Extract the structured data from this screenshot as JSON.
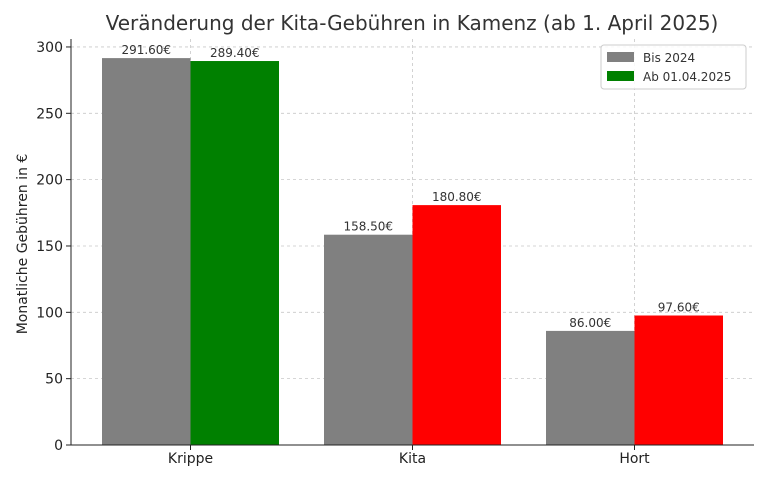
{
  "chart_data": {
    "type": "bar",
    "title": "Veränderung der Kita-Gebühren in Kamenz (ab 1. April 2025)",
    "xlabel": "",
    "ylabel": "Monatliche Gebühren in €",
    "categories": [
      "Krippe",
      "Kita",
      "Hort"
    ],
    "series": [
      {
        "name": "Bis 2024",
        "values": [
          291.6,
          158.5,
          86.0
        ],
        "labels": [
          "291.60€",
          "158.50€",
          "86.00€"
        ],
        "colors": [
          "#808080",
          "#808080",
          "#808080"
        ]
      },
      {
        "name": "Ab 01.04.2025",
        "values": [
          289.4,
          180.8,
          97.6
        ],
        "labels": [
          "289.40€",
          "180.80€",
          "97.60€"
        ],
        "colors": [
          "#008000",
          "#ff0000",
          "#ff0000"
        ]
      }
    ],
    "legend_colors": [
      "#808080",
      "#008000"
    ],
    "yticks": [
      0,
      50,
      100,
      150,
      200,
      250,
      300
    ],
    "ylim": [
      0,
      306
    ],
    "grid": true,
    "legend_position": "top-right"
  }
}
